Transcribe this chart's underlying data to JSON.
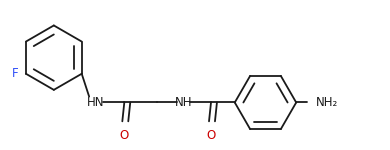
{
  "bg_color": "#ffffff",
  "line_color": "#1a1a1a",
  "bond_width": 1.3,
  "figsize": [
    3.9,
    1.5
  ],
  "dpi": 100,
  "F_color": "#3050F8",
  "NH_color": "#1a1a1a",
  "O_color": "#cc0000",
  "NH2_color": "#1a1a1a",
  "font_size": 8.5,
  "xlim": [
    0.0,
    7.8
  ],
  "ylim": [
    0.0,
    3.0
  ]
}
